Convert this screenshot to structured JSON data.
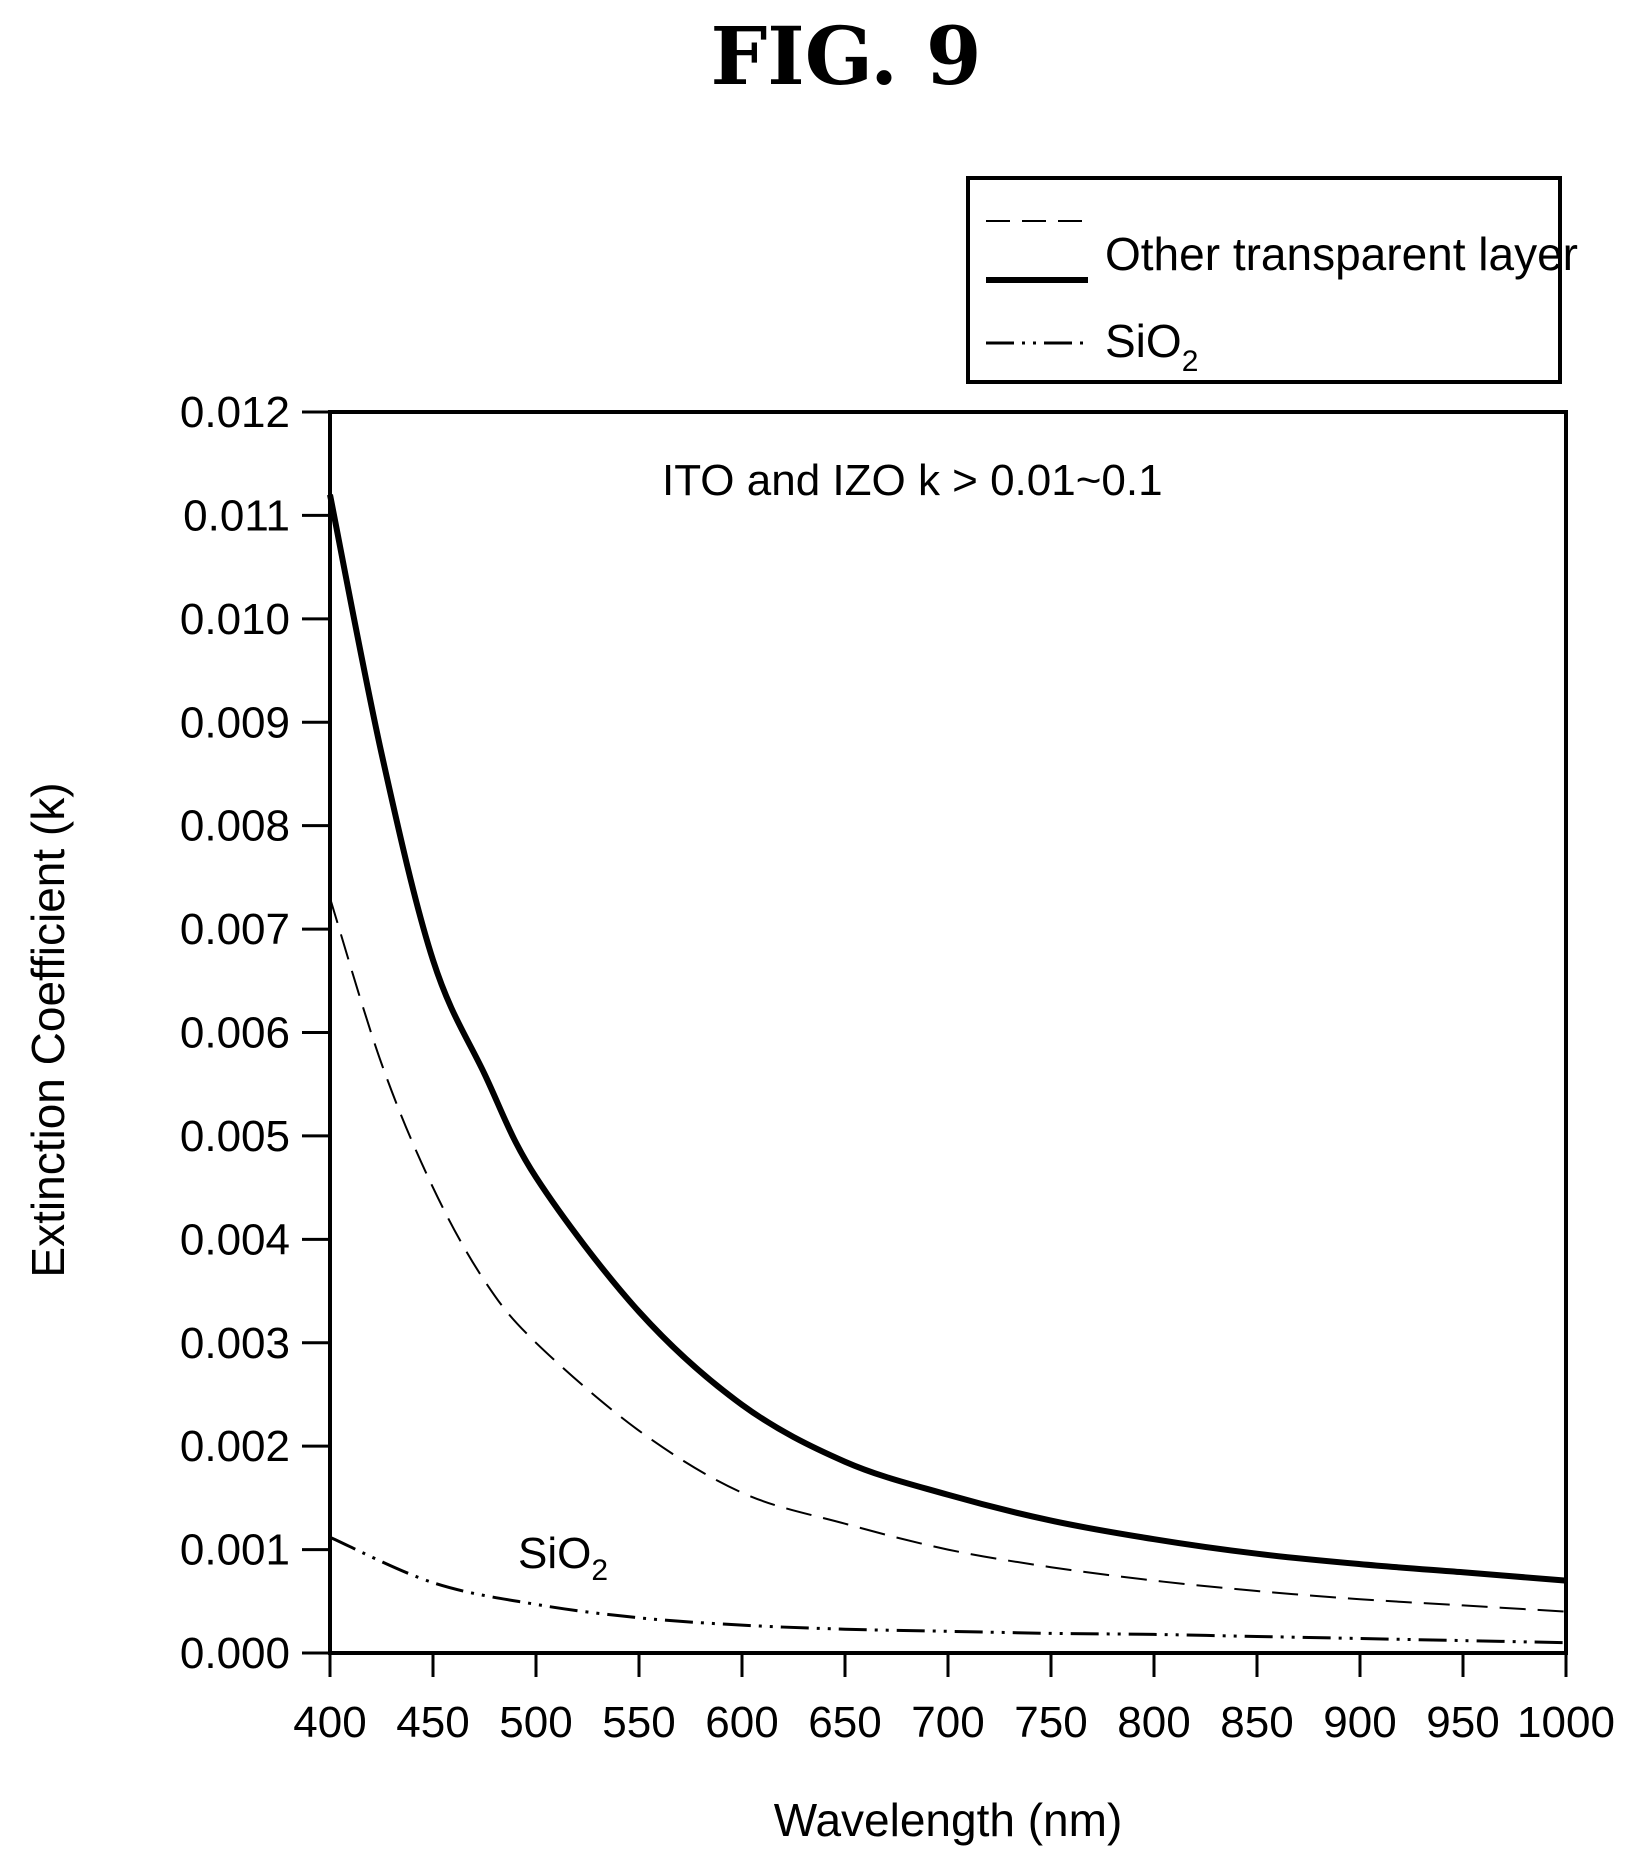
{
  "figure_title": "FIG. 9",
  "chart_data": {
    "type": "line",
    "xlabel": "Wavelength (nm)",
    "ylabel": "Extinction Coefficient (k)",
    "xlim": [
      400,
      1000
    ],
    "ylim": [
      0.0,
      0.012
    ],
    "x_ticks": [
      "400",
      "450",
      "500",
      "550",
      "600",
      "650",
      "700",
      "750",
      "800",
      "850",
      "900",
      "950",
      "1000"
    ],
    "y_ticks": [
      "0.000",
      "0.001",
      "0.002",
      "0.003",
      "0.004",
      "0.005",
      "0.006",
      "0.007",
      "0.008",
      "0.009",
      "0.010",
      "0.011",
      "0.012"
    ],
    "legend": {
      "position": "top-right (outside plot)",
      "label": "Other transparent layer",
      "sio2_label_main": "SiO",
      "sio2_label_sub": "2"
    },
    "annotations": {
      "ito_note": "ITO and IZO k > 0.01~0.1",
      "sio2_main": "SiO",
      "sio2_sub": "2"
    },
    "series": [
      {
        "style": "solid-thick",
        "x": [
          400,
          425,
          450,
          475,
          500,
          550,
          600,
          650,
          700,
          750,
          800,
          850,
          900,
          950,
          1000
        ],
        "y": [
          0.0112,
          0.0087,
          0.0067,
          0.0056,
          0.0046,
          0.0033,
          0.0024,
          0.00185,
          0.00153,
          0.00128,
          0.0011,
          0.00096,
          0.00086,
          0.00078,
          0.0007
        ]
      },
      {
        "style": "dashed",
        "x": [
          400,
          425,
          450,
          475,
          500,
          550,
          600,
          650,
          700,
          750,
          800,
          850,
          900,
          950,
          1000
        ],
        "y": [
          0.0073,
          0.0057,
          0.0045,
          0.0036,
          0.003,
          0.00215,
          0.00155,
          0.00125,
          0.001,
          0.00083,
          0.0007,
          0.0006,
          0.00052,
          0.00046,
          0.0004
        ]
      },
      {
        "style": "dash-dot-dot",
        "x": [
          400,
          450,
          500,
          550,
          600,
          650,
          700,
          750,
          800,
          850,
          900,
          950,
          1000
        ],
        "y": [
          0.00112,
          0.00068,
          0.00047,
          0.00034,
          0.00027,
          0.00023,
          0.00021,
          0.00019,
          0.00018,
          0.00016,
          0.00014,
          0.00012,
          0.0001
        ]
      }
    ]
  }
}
